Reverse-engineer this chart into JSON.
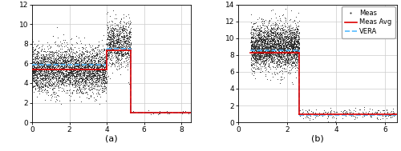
{
  "panel_a": {
    "xlim": [
      0.0,
      8.5
    ],
    "ylim": [
      0.0,
      12.0
    ],
    "xticks": [
      0.0,
      2.0,
      4.0,
      6.0,
      8.0
    ],
    "yticks": [
      0.0,
      2.0,
      4.0,
      6.0,
      8.0,
      10.0,
      12.0
    ],
    "xlabel": "(a)",
    "meas_avg_segments": [
      {
        "x": [
          0.0,
          4.0
        ],
        "y": [
          5.4,
          5.4
        ]
      },
      {
        "x": [
          4.0,
          5.3
        ],
        "y": [
          7.3,
          7.3
        ]
      },
      {
        "x": [
          5.3,
          8.5
        ],
        "y": [
          1.0,
          1.0
        ]
      }
    ],
    "vera_segments": [
      {
        "x": [
          0.0,
          4.0
        ],
        "y": [
          5.9,
          5.9
        ]
      },
      {
        "x": [
          4.0,
          5.3
        ],
        "y": [
          7.5,
          7.5
        ]
      },
      {
        "x": [
          5.3,
          8.5
        ],
        "y": [
          1.0,
          1.0
        ]
      }
    ],
    "scatter_phases": [
      {
        "x_range": [
          0.0,
          4.0
        ],
        "y_mean": 5.4,
        "y_std": 1.1,
        "n": 3500
      },
      {
        "x_range": [
          4.0,
          5.3
        ],
        "y_mean": 8.0,
        "y_std": 1.1,
        "n": 900
      },
      {
        "x_range": [
          5.3,
          8.5
        ],
        "y_mean": 1.0,
        "y_std": 0.08,
        "n": 50
      }
    ]
  },
  "panel_b": {
    "xlim": [
      0.0,
      6.5
    ],
    "ylim": [
      0.0,
      14.0
    ],
    "xticks": [
      0.0,
      2.0,
      4.0,
      6.0
    ],
    "yticks": [
      0.0,
      2.0,
      4.0,
      6.0,
      8.0,
      10.0,
      12.0,
      14.0
    ],
    "xlabel": "(b)",
    "meas_avg_segments": [
      {
        "x": [
          0.5,
          2.5
        ],
        "y": [
          8.3,
          8.3
        ]
      },
      {
        "x": [
          2.5,
          6.5
        ],
        "y": [
          1.0,
          1.0
        ]
      }
    ],
    "vera_segments": [
      {
        "x": [
          0.5,
          2.5
        ],
        "y": [
          8.6,
          8.6
        ]
      },
      {
        "x": [
          2.5,
          6.5
        ],
        "y": [
          0.85,
          0.85
        ]
      }
    ],
    "scatter_phases": [
      {
        "x_range": [
          0.5,
          2.5
        ],
        "y_mean": 9.0,
        "y_std": 1.3,
        "n": 3000
      },
      {
        "x_range": [
          2.5,
          6.5
        ],
        "y_mean": 1.0,
        "y_std": 0.3,
        "n": 200
      }
    ]
  },
  "legend": {
    "meas_label": "Meas",
    "meas_avg_label": "Meas Avg",
    "vera_label": "VERA"
  },
  "meas_color": "#222222",
  "meas_avg_color": "#dd0000",
  "vera_color": "#55bbff",
  "dot_size": 1.5,
  "background_color": "#ffffff",
  "grid_color": "#cccccc"
}
